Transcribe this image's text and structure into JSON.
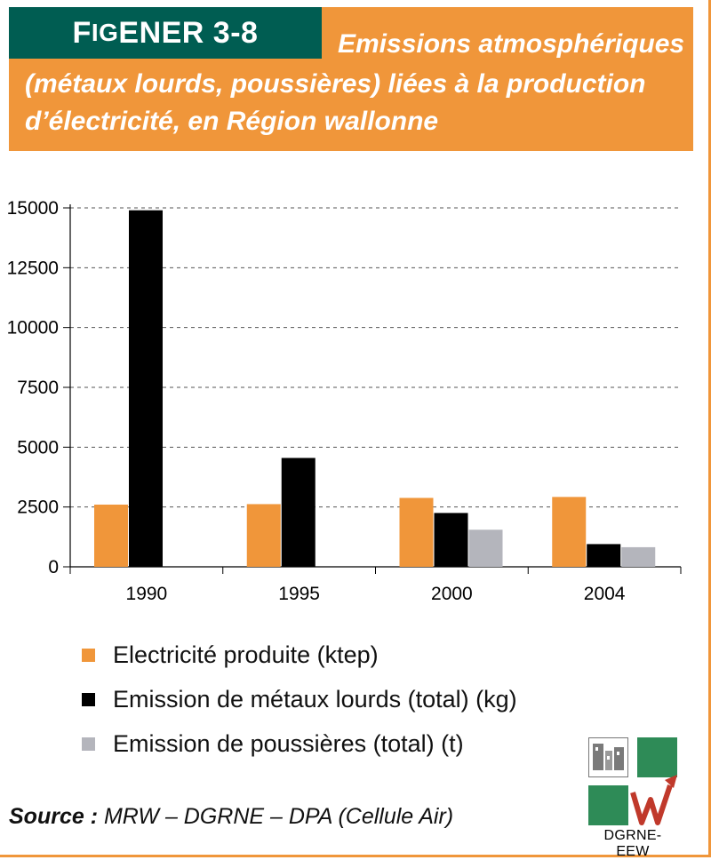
{
  "header": {
    "fig_prefix_big": "F",
    "fig_prefix_small": "IG",
    "fig_id": " ENER 3-8",
    "title_lines": [
      "Emissions atmosphériques",
      "(métaux lourds, poussières) liées à la production",
      "d’électricité, en Région wallonne"
    ]
  },
  "colors": {
    "orange": "#f0963a",
    "dark_green": "#005d52",
    "black": "#000000",
    "gray": "#b4b5bc"
  },
  "chart_data": {
    "type": "bar",
    "categories": [
      "1990",
      "1995",
      "2000",
      "2004"
    ],
    "series": [
      {
        "name": "Electricité produite (ktep)",
        "color": "#f0963a",
        "values": [
          2600,
          2620,
          2880,
          2920
        ]
      },
      {
        "name": "Emission de métaux lourds (total) (kg)",
        "color": "#000000",
        "values": [
          14900,
          4550,
          2250,
          950
        ]
      },
      {
        "name": "Emission de poussières (total) (t)",
        "color": "#b4b5bc",
        "values": [
          null,
          null,
          1550,
          820
        ]
      }
    ],
    "yticks": [
      "0",
      "2500",
      "5000",
      "7500",
      "10000",
      "12500",
      "15000"
    ],
    "ylim": [
      0,
      15000
    ],
    "grid": true,
    "legend_position": "bottom-left"
  },
  "source": {
    "label": "Source :",
    "text": " MRW – DGRNE – DPA (Cellule Air)"
  },
  "logo": {
    "text": "DGRNE-EEW"
  }
}
